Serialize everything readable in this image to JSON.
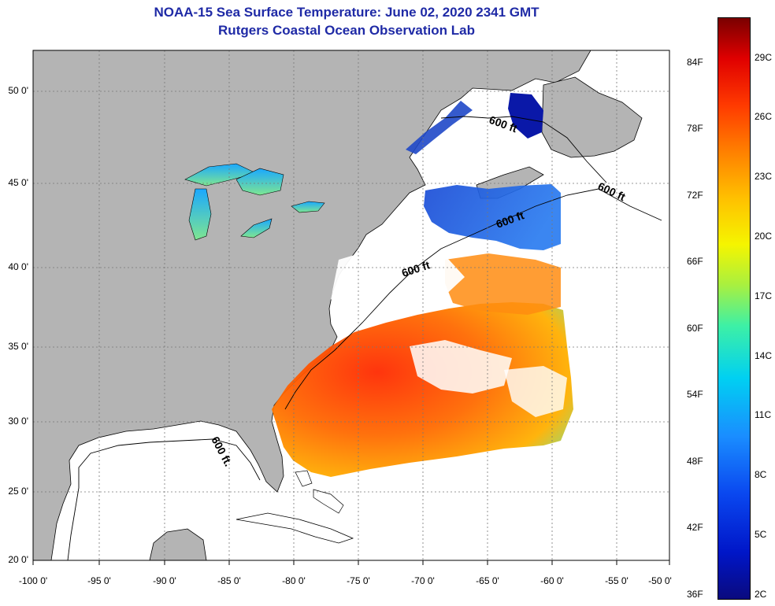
{
  "title": {
    "line1": "NOAA-15 Sea Surface Temperature:  June 02, 2020 2341 GMT",
    "line2": "Rutgers Coastal Ocean Observation Lab"
  },
  "map": {
    "lat_labels": [
      "50 0'",
      "45 0'",
      "40 0'",
      "35 0'",
      "30 0'",
      "25 0'",
      "20 0'"
    ],
    "lon_labels": [
      "-100 0'",
      "-95 0'",
      "-90 0'",
      "-85 0'",
      "-80 0'",
      "-75 0'",
      "-70 0'",
      "-65 0'",
      "-60 0'",
      "-55 0'",
      "-50 0'"
    ],
    "isobath_label": "600 ft",
    "isobath_label_gulf": "600 ft.",
    "colors": {
      "land": "#b4b4b4",
      "cloud": "#ffffff",
      "grid": "#777777"
    }
  },
  "colorbar": {
    "fahrenheit": [
      "84F",
      "78F",
      "72F",
      "66F",
      "60F",
      "54F",
      "48F",
      "42F",
      "36F"
    ],
    "celsius": [
      "29C",
      "26C",
      "23C",
      "20C",
      "17C",
      "14C",
      "11C",
      "8C",
      "5C",
      "2C"
    ]
  }
}
